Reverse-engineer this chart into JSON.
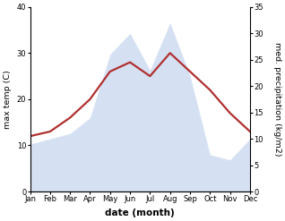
{
  "months": [
    "Jan",
    "Feb",
    "Mar",
    "Apr",
    "May",
    "Jun",
    "Jul",
    "Aug",
    "Sep",
    "Oct",
    "Nov",
    "Dec"
  ],
  "temperature": [
    12,
    13,
    16,
    20,
    26,
    28,
    25,
    30,
    26,
    22,
    17,
    13
  ],
  "precipitation": [
    9,
    10,
    11,
    14,
    26,
    30,
    23,
    32,
    22,
    7,
    6,
    10
  ],
  "temp_ylim": [
    0,
    40
  ],
  "precip_ylim": [
    0,
    35
  ],
  "temp_yticks": [
    0,
    10,
    20,
    30,
    40
  ],
  "precip_yticks": [
    0,
    5,
    10,
    15,
    20,
    25,
    30,
    35
  ],
  "ylabel_left": "max temp (C)",
  "ylabel_right": "med. precipitation (kg/m2)",
  "xlabel": "date (month)",
  "fill_color": "#c8d8f0",
  "fill_alpha": 0.75,
  "line_color": "#b03030",
  "line_width": 1.6,
  "bg_color": "#ffffff",
  "tick_label_fontsize": 6.0,
  "axis_label_fontsize": 6.8,
  "xlabel_fontsize": 7.5,
  "xlabel_fontweight": "bold"
}
